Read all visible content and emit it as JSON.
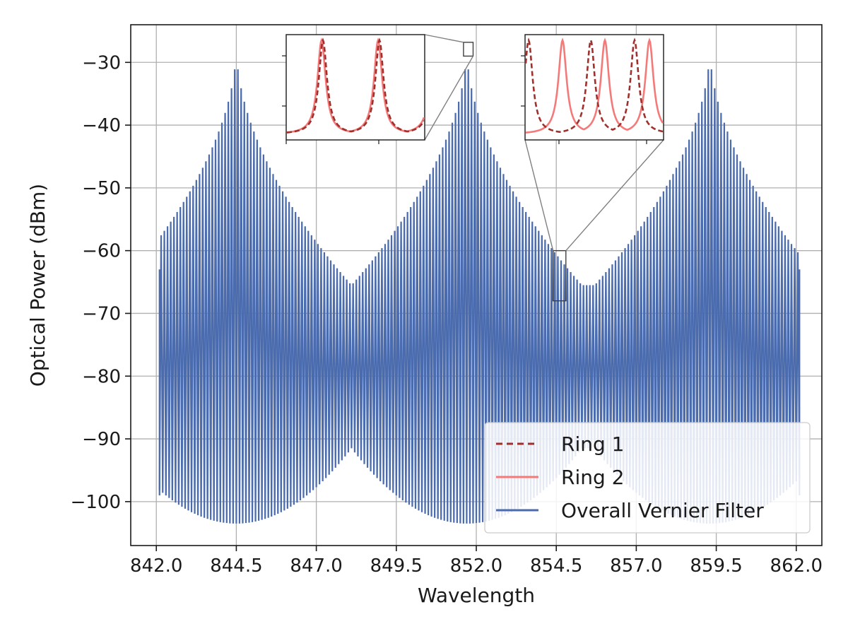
{
  "colors": {
    "overall": "#4A6BAD",
    "ring1": "#A0302C",
    "ring2": "#F47A7A",
    "grid": "#b0b0b0",
    "frame": "#1a1a1a",
    "connector": "#808080"
  },
  "chart_data": {
    "type": "line",
    "title": "",
    "xlabel": "Wavelength",
    "ylabel": "Optical Power (dBm)",
    "xlim": [
      841.2,
      862.8
    ],
    "ylim": [
      -107.0,
      -24.0
    ],
    "xticks": [
      842.0,
      844.5,
      847.0,
      849.5,
      852.0,
      854.5,
      857.0,
      859.5,
      862.0
    ],
    "xtick_labels": [
      "842.0",
      "844.5",
      "847.0",
      "849.5",
      "852.0",
      "854.5",
      "857.0",
      "859.5",
      "862.0"
    ],
    "yticks": [
      -100,
      -90,
      -80,
      -70,
      -60,
      -50,
      -40,
      -30
    ],
    "ytick_labels": [
      "−100",
      "−90",
      "−80",
      "−70",
      "−60",
      "−50",
      "−40",
      "−30"
    ],
    "grid": true,
    "legend_position": "lower-right",
    "x_range": [
      842.1,
      862.1
    ],
    "series": [
      {
        "name": "Ring 1",
        "style": "dashed",
        "visible_in_main": false,
        "resonance_spacing": 0.2,
        "peak_dbm": -27.0,
        "trough_dbm": -41.0
      },
      {
        "name": "Ring 2",
        "style": "solid",
        "visible_in_main": false,
        "resonance_spacing": 0.18
      },
      {
        "name": "Overall Vernier Filter",
        "style": "solid",
        "envelope_peaks_x": [
          844.5,
          851.7,
          859.3
        ],
        "envelope_peak_dbm": -27.5,
        "envelope_mid_peak_dbm": -65.5,
        "trough_at_peak_dbm": -103.5,
        "trough_between_dbm": -91.5,
        "edge_max_dbm": -63.0,
        "edge_min_dbm": -99.0
      }
    ],
    "insets": [
      {
        "source_x_range": [
          851.6,
          851.9
        ],
        "source_y_range": [
          -29.0,
          -26.8
        ],
        "series": [
          "Ring 1",
          "Ring 2"
        ],
        "relation": "aligned"
      },
      {
        "source_x_range": [
          854.4,
          854.8
        ],
        "source_y_range": [
          -68.0,
          -60.0
        ],
        "series": [
          "Ring 1",
          "Ring 2"
        ],
        "relation": "offset"
      }
    ]
  }
}
